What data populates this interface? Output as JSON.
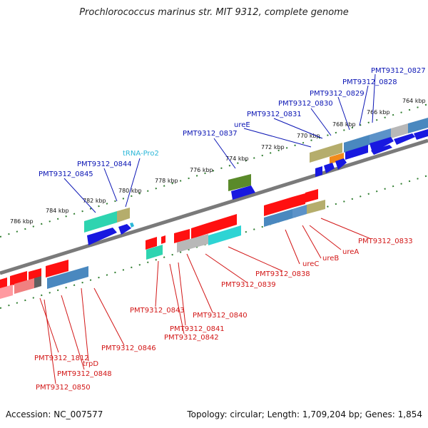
{
  "title": "Prochlorococcus marinus str. MIT 9312, complete genome",
  "footer": {
    "accession": "Accession: NC_007577",
    "summary": "Topology: circular; Length: 1,709,204 bp; Genes: 1,854"
  },
  "colors": {
    "backbone": "#7a7a7a",
    "dots": "#2f7d2f",
    "top_label": "#0a14b4",
    "bottom_label": "#d21616",
    "rna_label": "#2bb7d8"
  },
  "ticks": [
    "764 kbp",
    "766 kbp",
    "768 kbp",
    "770 kbp",
    "772 kbp",
    "774 kbp",
    "776 kbp",
    "778 kbp",
    "780 kbp",
    "782 kbp",
    "784 kbp",
    "786 kbp"
  ],
  "top_labels": [
    "PMT9312_0827",
    "PMT9312_0828",
    "PMT9312_0829",
    "PMT9312_0830",
    "PMT9312_0831",
    "ureE",
    "PMT9312_0837",
    "tRNA-Pro2",
    "PMT9312_0844",
    "PMT9312_0845"
  ],
  "bottom_labels": [
    "PMT9312_0833",
    "ureA",
    "ureB",
    "ureC",
    "PMT9312_0838",
    "PMT9312_0839",
    "PMT9312_0840",
    "PMT9312_0843",
    "PMT9312_0841",
    "PMT9312_0842",
    "PMT9312_0846",
    "trpD",
    "PMT9312_1812",
    "PMT9312_0848",
    "PMT9312_0850"
  ]
}
